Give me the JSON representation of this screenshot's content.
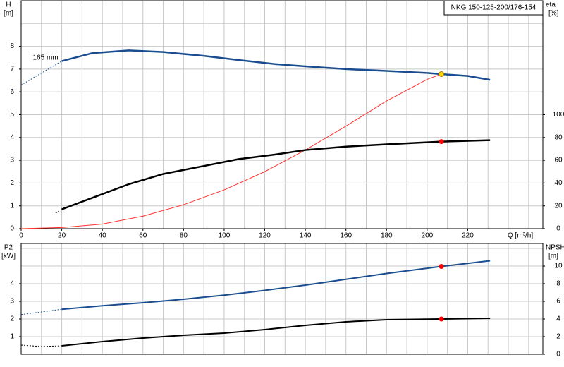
{
  "chart_data": [
    {
      "type": "line",
      "title": "NKG 150-125-200/176-154",
      "ylabel": "H",
      "yunit": "[m]",
      "y2label": "eta",
      "y2unit": "[%]",
      "xlabel": "Q [m³/h]",
      "xlim": [
        0,
        257
      ],
      "xticks": [
        0,
        20,
        40,
        60,
        80,
        100,
        120,
        140,
        160,
        180,
        200,
        220
      ],
      "xgrid": [
        0,
        10,
        20,
        30,
        40,
        50,
        60,
        70,
        80,
        90,
        100,
        110,
        120,
        130,
        140,
        150,
        160,
        170,
        180,
        190,
        200,
        210,
        220,
        230,
        240,
        250
      ],
      "ylim": [
        0,
        10
      ],
      "yticks": [
        0,
        1,
        2,
        3,
        4,
        5,
        6,
        7,
        8
      ],
      "ygrid": [
        1,
        2,
        3,
        4,
        5,
        6,
        7,
        8,
        9
      ],
      "y2lim": [
        0,
        200
      ],
      "y2ticks": [
        0,
        20,
        40,
        60,
        80,
        100
      ],
      "annotation": {
        "text": "165 mm",
        "x": 12,
        "y": 7.5
      },
      "series": [
        {
          "color": "#1a4d8f",
          "width": 1,
          "dashed": true,
          "axis": "y",
          "x": [
            0,
            20
          ],
          "values": [
            6.3,
            7.35
          ]
        },
        {
          "color": "#1a4d8f",
          "width": 2.5,
          "dashed": false,
          "axis": "y",
          "x": [
            20,
            35,
            53,
            70,
            90,
            107,
            125,
            140,
            160,
            180,
            200,
            207,
            220,
            231
          ],
          "values": [
            7.35,
            7.7,
            7.82,
            7.75,
            7.58,
            7.4,
            7.22,
            7.12,
            7.0,
            6.92,
            6.83,
            6.78,
            6.7,
            6.53
          ]
        },
        {
          "color": "#ff3030",
          "width": 1,
          "dashed": false,
          "axis": "y",
          "x": [
            0,
            20,
            40,
            60,
            80,
            100,
            120,
            140,
            160,
            180,
            200,
            207
          ],
          "values": [
            0,
            0.05,
            0.2,
            0.55,
            1.05,
            1.7,
            2.5,
            3.45,
            4.5,
            5.6,
            6.55,
            6.78
          ]
        },
        {
          "color": "#000000",
          "width": 1,
          "dashed": true,
          "axis": "y2",
          "x": [
            17,
            20
          ],
          "values": [
            13.6,
            17
          ]
        },
        {
          "color": "#000000",
          "width": 2.5,
          "dashed": false,
          "axis": "y2",
          "x": [
            20,
            35,
            53,
            70,
            90,
            107,
            125,
            140,
            160,
            180,
            207,
            231
          ],
          "values": [
            17,
            27,
            39,
            48,
            55,
            61,
            65,
            69,
            72,
            74,
            76.4,
            77.6
          ]
        },
        {
          "color": "#ffd700",
          "marker": true,
          "axis": "y",
          "x": [
            207
          ],
          "values": [
            6.78
          ]
        },
        {
          "color": "#ff0000",
          "marker": true,
          "axis": "y2",
          "x": [
            207
          ],
          "values": [
            76.4
          ]
        }
      ]
    },
    {
      "type": "line",
      "ylabel": "P2",
      "yunit": "[kW]",
      "y2label": "NPSH",
      "y2unit": "[m]",
      "xlim": [
        0,
        257
      ],
      "xgrid": [
        0,
        10,
        20,
        30,
        40,
        50,
        60,
        70,
        80,
        90,
        100,
        110,
        120,
        130,
        140,
        150,
        160,
        170,
        180,
        190,
        200,
        210,
        220,
        230,
        240,
        250
      ],
      "ylim": [
        0,
        6.28
      ],
      "yticks": [
        1,
        2,
        3,
        4
      ],
      "ygrid": [
        1,
        2,
        3,
        4,
        5,
        6
      ],
      "y2lim": [
        0,
        12.56
      ],
      "y2ticks": [
        0,
        2,
        4,
        6,
        8,
        10
      ],
      "series": [
        {
          "color": "#1a4d8f",
          "width": 1,
          "dashed": true,
          "axis": "y",
          "x": [
            0,
            20
          ],
          "values": [
            2.25,
            2.55
          ]
        },
        {
          "color": "#1a4d8f",
          "width": 2,
          "dashed": false,
          "axis": "y",
          "x": [
            20,
            40,
            60,
            80,
            100,
            120,
            140,
            160,
            180,
            207,
            231
          ],
          "values": [
            2.55,
            2.75,
            2.92,
            3.12,
            3.35,
            3.62,
            3.92,
            4.25,
            4.58,
            4.98,
            5.3
          ]
        },
        {
          "color": "#000000",
          "width": 1,
          "dashed": true,
          "axis": "y2",
          "x": [
            0,
            10,
            20
          ],
          "values": [
            1.04,
            0.88,
            0.96
          ]
        },
        {
          "color": "#000000",
          "width": 2,
          "dashed": false,
          "axis": "y2",
          "x": [
            20,
            40,
            60,
            80,
            100,
            120,
            140,
            160,
            180,
            207,
            231
          ],
          "values": [
            0.96,
            1.44,
            1.84,
            2.16,
            2.4,
            2.8,
            3.28,
            3.68,
            3.92,
            4.0,
            4.08
          ]
        },
        {
          "color": "#ff0000",
          "marker": true,
          "axis": "y",
          "x": [
            207
          ],
          "values": [
            4.98
          ]
        },
        {
          "color": "#ff0000",
          "marker": true,
          "axis": "y2",
          "x": [
            207
          ],
          "values": [
            4.0
          ]
        }
      ]
    }
  ]
}
